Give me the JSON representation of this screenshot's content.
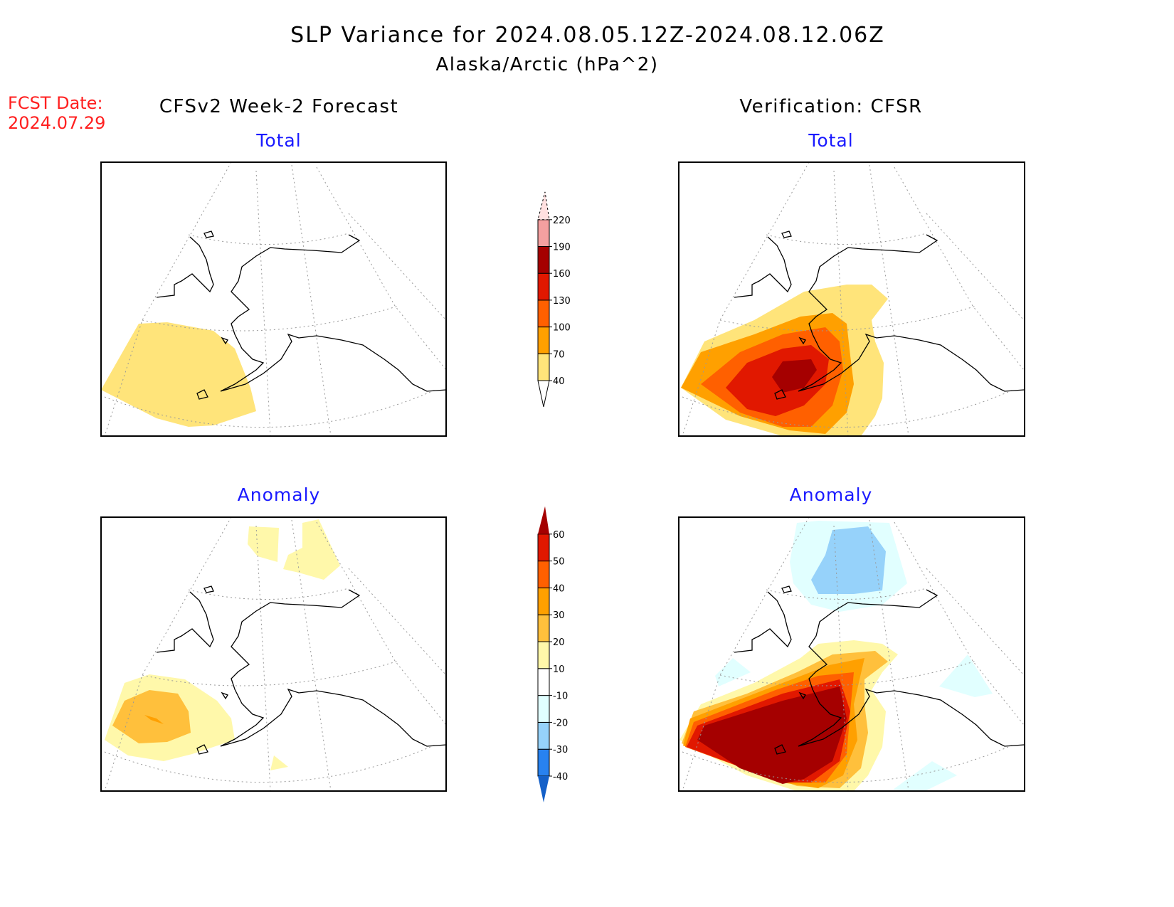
{
  "header": {
    "title": "SLP Variance for 2024.08.05.12Z-2024.08.12.06Z",
    "subtitle": "Alaska/Arctic (hPa^2)",
    "fcst_label": "FCST Date:",
    "fcst_date": "2024.07.29"
  },
  "columns": {
    "left": "CFSv2 Week-2 Forecast",
    "right": "Verification: CFSR"
  },
  "panels": {
    "top_left": "Total",
    "top_right": "Total",
    "bottom_left": "Anomaly",
    "bottom_right": "Anomaly"
  },
  "chart_data": {
    "type": "heatmap",
    "title": "SLP Variance for 2024.08.05.12Z-2024.08.12.06Z",
    "units": "hPa^2",
    "colorbars": [
      {
        "name": "total",
        "levels": [
          "40",
          "70",
          "100",
          "130",
          "160",
          "190",
          "220"
        ],
        "colors": [
          "#ffe47a",
          "#ffa000",
          "#ff6000",
          "#e11800",
          "#a50000",
          "#f4a0a0",
          "#ffe0e0"
        ]
      },
      {
        "name": "anomaly",
        "levels": [
          "-40",
          "-30",
          "-20",
          "-10",
          "10",
          "20",
          "30",
          "40",
          "50",
          "60"
        ],
        "colors": [
          "#1460c8",
          "#2882f0",
          "#96d2fa",
          "#e1ffff",
          "#ffffff",
          "#fff8aa",
          "#ffc03c",
          "#ffa000",
          "#ff6000",
          "#e11800",
          "#a50000"
        ]
      }
    ]
  }
}
